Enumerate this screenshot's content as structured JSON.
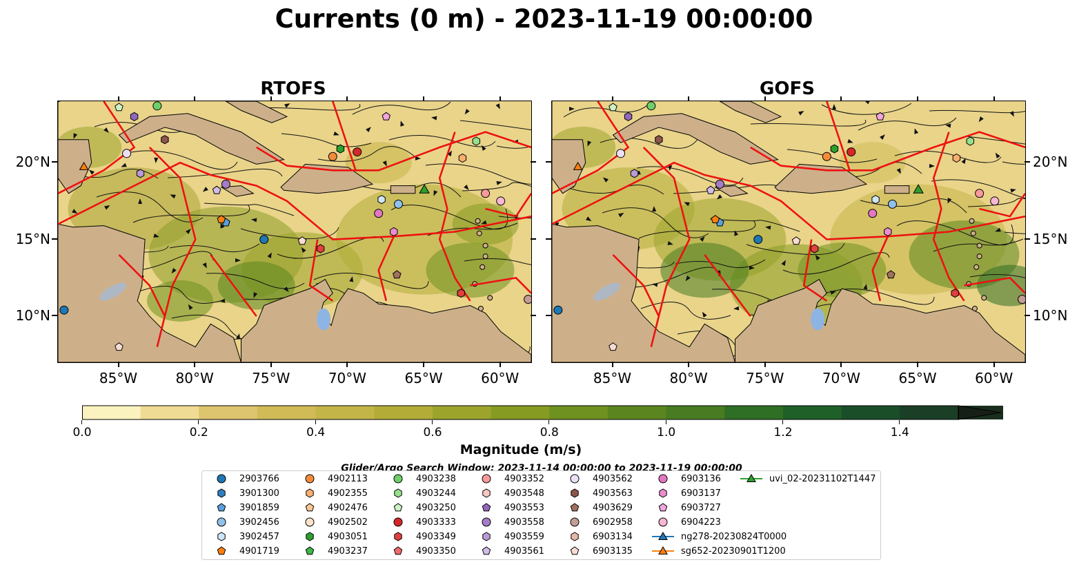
{
  "title": "Currents (0 m) - 2023-11-19 00:00:00",
  "panels": [
    {
      "title": "RTOFS"
    },
    {
      "title": "GOFS"
    }
  ],
  "lon_ticks": [
    "85°W",
    "80°W",
    "75°W",
    "70°W",
    "65°W",
    "60°W"
  ],
  "lat_ticks": [
    "20°N",
    "15°N",
    "10°N"
  ],
  "colorbar": {
    "label": "Magnitude (m/s)",
    "ticks": [
      "0.0",
      "0.2",
      "0.4",
      "0.6",
      "0.8",
      "1.0",
      "1.2",
      "1.4"
    ],
    "min": 0.0,
    "max": 1.5,
    "extend": "max",
    "colors": [
      "#fbf3bf",
      "#efdb94",
      "#ddc46e",
      "#d0bb57",
      "#c4b548",
      "#b3ad38",
      "#9ca42c",
      "#869b22",
      "#6f911f",
      "#5b861f",
      "#487b22",
      "#2f6e25",
      "#1f6028",
      "#1a4e28",
      "#1a3e26",
      "#1a2e1e"
    ],
    "extend_color": "#161f15"
  },
  "subtitle": "Glider/Argo Search Window: 2023-11-14 00:00:00 to 2023-11-19 00:00:00",
  "colors": {
    "land": "#cdb08a",
    "eez_lines": "#ee1111",
    "lakes": "#8eb4e3"
  },
  "legend": [
    {
      "label": "2903766",
      "marker": "circle",
      "color": "#1f77b4"
    },
    {
      "label": "3901300",
      "marker": "hexagon",
      "color": "#2f7ec0"
    },
    {
      "label": "3901859",
      "marker": "pentagon",
      "color": "#5aa0dc"
    },
    {
      "label": "3902456",
      "marker": "circle",
      "color": "#8fc1ea"
    },
    {
      "label": "3902457",
      "marker": "hexagon",
      "color": "#cfe6f8"
    },
    {
      "label": "4901719",
      "marker": "pentagon",
      "color": "#ff7f0e"
    },
    {
      "label": "4902113",
      "marker": "circle",
      "color": "#f58b3a"
    },
    {
      "label": "4902355",
      "marker": "hexagon",
      "color": "#fbae6d"
    },
    {
      "label": "4902476",
      "marker": "pentagon",
      "color": "#fdc794"
    },
    {
      "label": "4902502",
      "marker": "circle",
      "color": "#fde3c8"
    },
    {
      "label": "4903051",
      "marker": "hexagon",
      "color": "#2ca02c"
    },
    {
      "label": "4903237",
      "marker": "pentagon",
      "color": "#3fb54a"
    },
    {
      "label": "4903238",
      "marker": "circle",
      "color": "#6fcf6a"
    },
    {
      "label": "4903244",
      "marker": "hexagon",
      "color": "#98df8a"
    },
    {
      "label": "4903250",
      "marker": "pentagon",
      "color": "#cdf2c4"
    },
    {
      "label": "4903333",
      "marker": "circle",
      "color": "#d62728"
    },
    {
      "label": "4903349",
      "marker": "hexagon",
      "color": "#e0403f"
    },
    {
      "label": "4903350",
      "marker": "pentagon",
      "color": "#ee6b6b"
    },
    {
      "label": "4903352",
      "marker": "circle",
      "color": "#f69a9a"
    },
    {
      "label": "4903548",
      "marker": "hexagon",
      "color": "#fbc7c6"
    },
    {
      "label": "4903553",
      "marker": "pentagon",
      "color": "#9467bd"
    },
    {
      "label": "4903558",
      "marker": "circle",
      "color": "#a47cc7"
    },
    {
      "label": "4903559",
      "marker": "hexagon",
      "color": "#b99ad6"
    },
    {
      "label": "4903561",
      "marker": "pentagon",
      "color": "#d2bde6"
    },
    {
      "label": "4903562",
      "marker": "circle",
      "color": "#ece0f5"
    },
    {
      "label": "4903563",
      "marker": "hexagon",
      "color": "#8c564b"
    },
    {
      "label": "4903629",
      "marker": "pentagon",
      "color": "#a0715f"
    },
    {
      "label": "6902958",
      "marker": "circle",
      "color": "#c49c94"
    },
    {
      "label": "6903134",
      "marker": "hexagon",
      "color": "#e3b7aa"
    },
    {
      "label": "6903135",
      "marker": "pentagon",
      "color": "#f7dcd3"
    },
    {
      "label": "6903136",
      "marker": "circle",
      "color": "#e377c2"
    },
    {
      "label": "6903137",
      "marker": "hexagon",
      "color": "#ea8ccd"
    },
    {
      "label": "6903727",
      "marker": "pentagon",
      "color": "#f2a6dd"
    },
    {
      "label": "6904223",
      "marker": "circle",
      "color": "#f7b6d2"
    },
    {
      "label": "ng278-20230824T0000",
      "marker": "triangle-line",
      "color": "#1f77b4"
    },
    {
      "label": "sg652-20230901T1200",
      "marker": "triangle-line",
      "color": "#ff7f0e"
    },
    {
      "label": "uvi_02-20231102T1447",
      "marker": "triangle-line",
      "color": "#2ca02c"
    }
  ]
}
